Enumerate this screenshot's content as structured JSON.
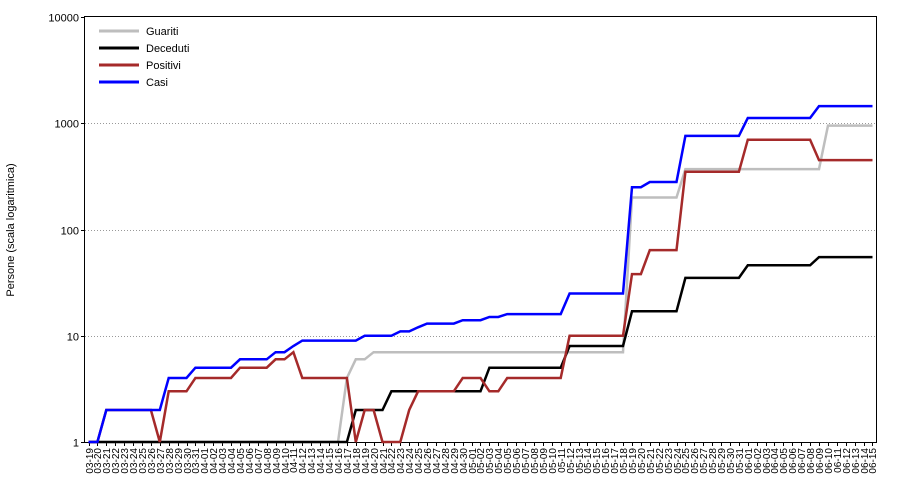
{
  "chart_data": {
    "type": "line",
    "title": "",
    "xlabel": "",
    "ylabel": "Persone (scala logaritmica)",
    "yscale": "log",
    "ylim": [
      1,
      10000
    ],
    "yticks": [
      1,
      10,
      100,
      1000,
      10000
    ],
    "yticklabels": [
      "1",
      "10",
      "100",
      "1000",
      "10000"
    ],
    "grid": "horizontal-dotted",
    "legend": "top-left",
    "x": [
      "03-19",
      "03-20",
      "03-21",
      "03-22",
      "03-23",
      "03-24",
      "03-25",
      "03-26",
      "03-27",
      "03-28",
      "03-29",
      "03-30",
      "03-31",
      "04-01",
      "04-02",
      "04-03",
      "04-04",
      "04-05",
      "04-06",
      "04-07",
      "04-08",
      "04-09",
      "04-10",
      "04-11",
      "04-12",
      "04-13",
      "04-14",
      "04-15",
      "04-16",
      "04-17",
      "04-18",
      "04-19",
      "04-20",
      "04-21",
      "04-22",
      "04-23",
      "04-24",
      "04-25",
      "04-26",
      "04-27",
      "04-28",
      "04-29",
      "04-30",
      "05-01",
      "05-02",
      "05-03",
      "05-04",
      "05-05",
      "05-06",
      "05-07",
      "05-08",
      "05-09",
      "05-10",
      "05-11",
      "05-12",
      "05-13",
      "05-14",
      "05-15",
      "05-16",
      "05-17",
      "05-18",
      "05-19",
      "05-20",
      "05-21",
      "05-22",
      "05-23",
      "05-24",
      "05-25",
      "05-26",
      "05-27",
      "05-28",
      "05-29",
      "05-30",
      "05-31",
      "06-01",
      "06-02",
      "06-03",
      "06-04",
      "06-05",
      "06-06",
      "06-07",
      "06-08",
      "06-09",
      "06-10",
      "06-11",
      "06-12",
      "06-13",
      "06-14",
      "06-15"
    ],
    "series": [
      {
        "name": "Guariti",
        "color": "#bebebe",
        "values": [
          1,
          1,
          1,
          1,
          1,
          1,
          1,
          1,
          1,
          1,
          1,
          1,
          1,
          1,
          1,
          1,
          1,
          1,
          1,
          1,
          1,
          1,
          1,
          1,
          1,
          1,
          1,
          1,
          1,
          4,
          6,
          6,
          7,
          7,
          7,
          7,
          7,
          7,
          7,
          7,
          7,
          7,
          7,
          7,
          7,
          7,
          7,
          7,
          7,
          7,
          7,
          7,
          7,
          7,
          7,
          7,
          7,
          7,
          7,
          7,
          7,
          200,
          200,
          200,
          200,
          200,
          200,
          370,
          370,
          370,
          370,
          370,
          370,
          370,
          370,
          370,
          370,
          370,
          370,
          370,
          370,
          370,
          370,
          950,
          950,
          950,
          950,
          950,
          950
        ]
      },
      {
        "name": "Deceduti",
        "color": "#000000",
        "values": [
          1,
          1,
          1,
          1,
          1,
          1,
          1,
          1,
          1,
          1,
          1,
          1,
          1,
          1,
          1,
          1,
          1,
          1,
          1,
          1,
          1,
          1,
          1,
          1,
          1,
          1,
          1,
          1,
          1,
          1,
          2,
          2,
          2,
          2,
          3,
          3,
          3,
          3,
          3,
          3,
          3,
          3,
          3,
          3,
          3,
          5,
          5,
          5,
          5,
          5,
          5,
          5,
          5,
          5,
          8,
          8,
          8,
          8,
          8,
          8,
          8,
          17,
          17,
          17,
          17,
          17,
          17,
          35,
          35,
          35,
          35,
          35,
          35,
          35,
          46,
          46,
          46,
          46,
          46,
          46,
          46,
          46,
          55,
          55,
          55,
          55,
          55,
          55,
          55
        ]
      },
      {
        "name": "Positivi",
        "color": "#a52a2a",
        "values": [
          1,
          1,
          2,
          2,
          2,
          2,
          2,
          2,
          1,
          3,
          3,
          3,
          4,
          4,
          4,
          4,
          4,
          5,
          5,
          5,
          5,
          6,
          6,
          7,
          4,
          4,
          4,
          4,
          4,
          4,
          1,
          2,
          2,
          1,
          1,
          1,
          2,
          3,
          3,
          3,
          3,
          3,
          4,
          4,
          4,
          3,
          3,
          4,
          4,
          4,
          4,
          4,
          4,
          4,
          10,
          10,
          10,
          10,
          10,
          10,
          10,
          38,
          38,
          64,
          64,
          64,
          64,
          350,
          350,
          350,
          350,
          350,
          350,
          350,
          700,
          700,
          700,
          700,
          700,
          700,
          700,
          700,
          450,
          450,
          450,
          450,
          450,
          450,
          450
        ]
      },
      {
        "name": "Casi",
        "color": "#0000ff",
        "values": [
          1,
          1,
          2,
          2,
          2,
          2,
          2,
          2,
          2,
          4,
          4,
          4,
          5,
          5,
          5,
          5,
          5,
          6,
          6,
          6,
          6,
          7,
          7,
          8,
          9,
          9,
          9,
          9,
          9,
          9,
          9,
          10,
          10,
          10,
          10,
          11,
          11,
          12,
          13,
          13,
          13,
          13,
          14,
          14,
          14,
          15,
          15,
          16,
          16,
          16,
          16,
          16,
          16,
          16,
          25,
          25,
          25,
          25,
          25,
          25,
          25,
          250,
          250,
          280,
          280,
          280,
          280,
          760,
          760,
          760,
          760,
          760,
          760,
          760,
          1120,
          1120,
          1120,
          1120,
          1120,
          1120,
          1120,
          1120,
          1450,
          1450,
          1450,
          1450,
          1450,
          1450,
          1450
        ]
      }
    ]
  }
}
